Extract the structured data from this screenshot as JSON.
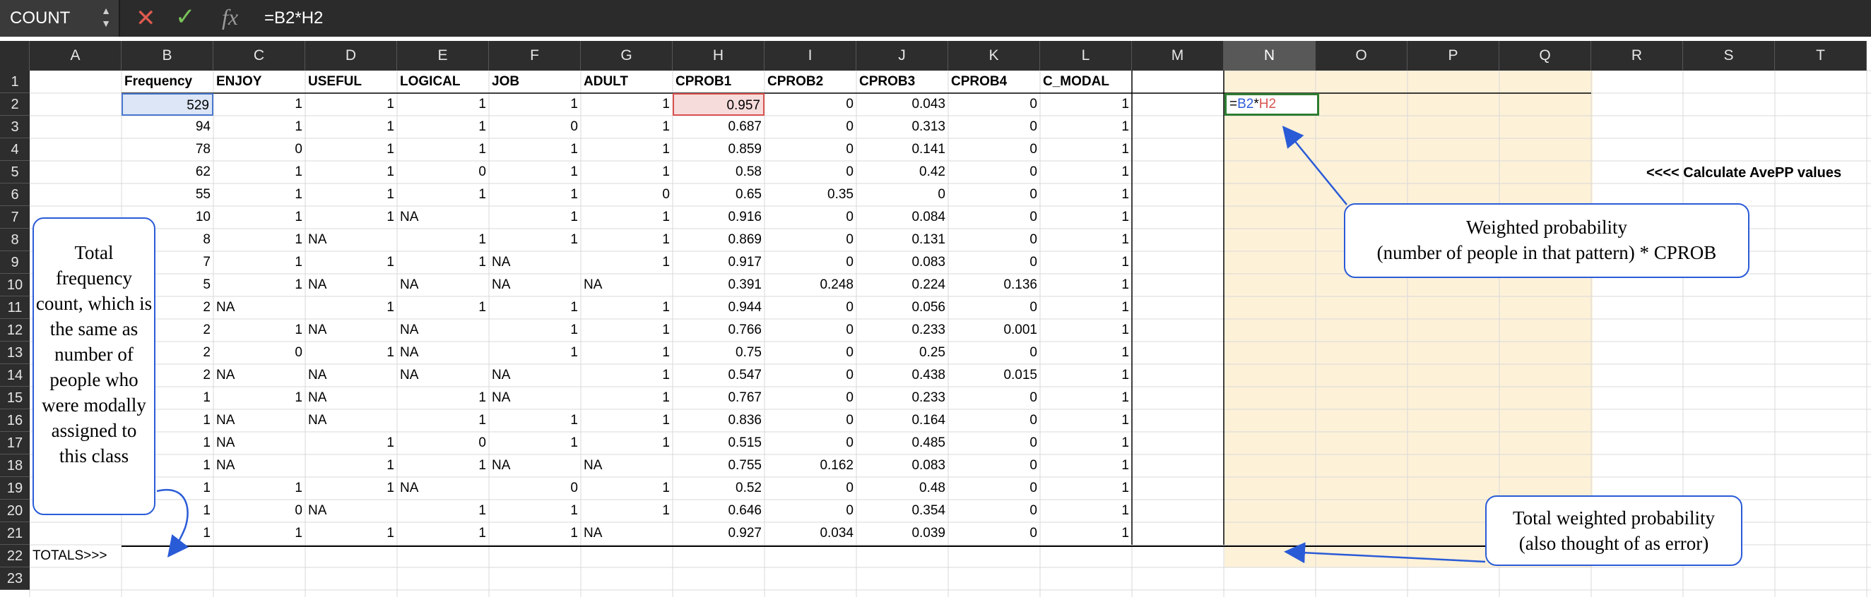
{
  "formula_bar": {
    "name_box": "COUNT",
    "cancel_icon": "x-icon",
    "confirm_icon": "check-icon",
    "fx_label": "fx",
    "formula": "=B2*H2"
  },
  "columns": [
    "A",
    "B",
    "C",
    "D",
    "E",
    "F",
    "G",
    "H",
    "I",
    "J",
    "K",
    "L",
    "M",
    "N",
    "O",
    "P",
    "Q",
    "R",
    "S",
    "T"
  ],
  "selected_column": "N",
  "headers": {
    "B": "Frequency",
    "C": "ENJOY",
    "D": "USEFUL",
    "E": "LOGICAL",
    "F": "JOB",
    "G": "ADULT",
    "H": "CPROB1",
    "I": "CPROB2",
    "J": "CPROB3",
    "K": "CPROB4",
    "L": "C_MODAL"
  },
  "rows": [
    [
      "529",
      "1",
      "1",
      "1",
      "1",
      "1",
      "0.957",
      "0",
      "0.043",
      "0",
      "1"
    ],
    [
      "94",
      "1",
      "1",
      "1",
      "0",
      "1",
      "0.687",
      "0",
      "0.313",
      "0",
      "1"
    ],
    [
      "78",
      "0",
      "1",
      "1",
      "1",
      "1",
      "0.859",
      "0",
      "0.141",
      "0",
      "1"
    ],
    [
      "62",
      "1",
      "1",
      "0",
      "1",
      "1",
      "0.58",
      "0",
      "0.42",
      "0",
      "1"
    ],
    [
      "55",
      "1",
      "1",
      "1",
      "1",
      "0",
      "0.65",
      "0.35",
      "0",
      "0",
      "1"
    ],
    [
      "10",
      "1",
      "1",
      "NA",
      "1",
      "1",
      "0.916",
      "0",
      "0.084",
      "0",
      "1"
    ],
    [
      "8",
      "1",
      "NA",
      "1",
      "1",
      "1",
      "0.869",
      "0",
      "0.131",
      "0",
      "1"
    ],
    [
      "7",
      "1",
      "1",
      "1",
      "NA",
      "1",
      "0.917",
      "0",
      "0.083",
      "0",
      "1"
    ],
    [
      "5",
      "1",
      "NA",
      "NA",
      "NA",
      "NA",
      "0.391",
      "0.248",
      "0.224",
      "0.136",
      "1"
    ],
    [
      "2",
      "NA",
      "1",
      "1",
      "1",
      "1",
      "0.944",
      "0",
      "0.056",
      "0",
      "1"
    ],
    [
      "2",
      "1",
      "NA",
      "NA",
      "1",
      "1",
      "0.766",
      "0",
      "0.233",
      "0.001",
      "1"
    ],
    [
      "2",
      "0",
      "1",
      "NA",
      "1",
      "1",
      "0.75",
      "0",
      "0.25",
      "0",
      "1"
    ],
    [
      "2",
      "NA",
      "NA",
      "NA",
      "NA",
      "1",
      "0.547",
      "0",
      "0.438",
      "0.015",
      "1"
    ],
    [
      "1",
      "1",
      "NA",
      "1",
      "NA",
      "1",
      "0.767",
      "0",
      "0.233",
      "0",
      "1"
    ],
    [
      "1",
      "NA",
      "NA",
      "1",
      "1",
      "1",
      "0.836",
      "0",
      "0.164",
      "0",
      "1"
    ],
    [
      "1",
      "NA",
      "1",
      "0",
      "1",
      "1",
      "0.515",
      "0",
      "0.485",
      "0",
      "1"
    ],
    [
      "1",
      "NA",
      "1",
      "1",
      "NA",
      "NA",
      "0.755",
      "0.162",
      "0.083",
      "0",
      "1"
    ],
    [
      "1",
      "1",
      "1",
      "NA",
      "0",
      "1",
      "0.52",
      "0",
      "0.48",
      "0",
      "1"
    ],
    [
      "1",
      "0",
      "NA",
      "1",
      "1",
      "1",
      "0.646",
      "0",
      "0.354",
      "0",
      "1"
    ],
    [
      "1",
      "1",
      "1",
      "1",
      "1",
      "NA",
      "0.927",
      "0.034",
      "0.039",
      "0",
      "1"
    ]
  ],
  "row_numbers": [
    "1",
    "2",
    "3",
    "4",
    "5",
    "6",
    "7",
    "8",
    "9",
    "10",
    "11",
    "12",
    "13",
    "14",
    "15",
    "16",
    "17",
    "18",
    "19",
    "20",
    "21",
    "22",
    "23"
  ],
  "totals_label": "TOTALS>>>",
  "active_cell": {
    "ref": "N2",
    "formula_eq": "=",
    "formula_ref1": "B2",
    "formula_op": "*",
    "formula_ref2": "H2"
  },
  "annotations": {
    "left_callout": "Total frequency count, which is the same as number of people who were modally assigned to this class",
    "weighted_line1": "Weighted probability",
    "weighted_line2": "(number of people in that pattern) * CPROB",
    "total_line1": "Total weighted probability",
    "total_line2": "(also thought of as error)",
    "avepp": "<<<<  Calculate AvePP values"
  },
  "colors": {
    "header_bg": "#2d2d2d",
    "highlight": "#fdf1d8",
    "annotation_blue": "#2a5bd7",
    "active_border": "#2e7d32",
    "ref_red": "#d9534f"
  }
}
